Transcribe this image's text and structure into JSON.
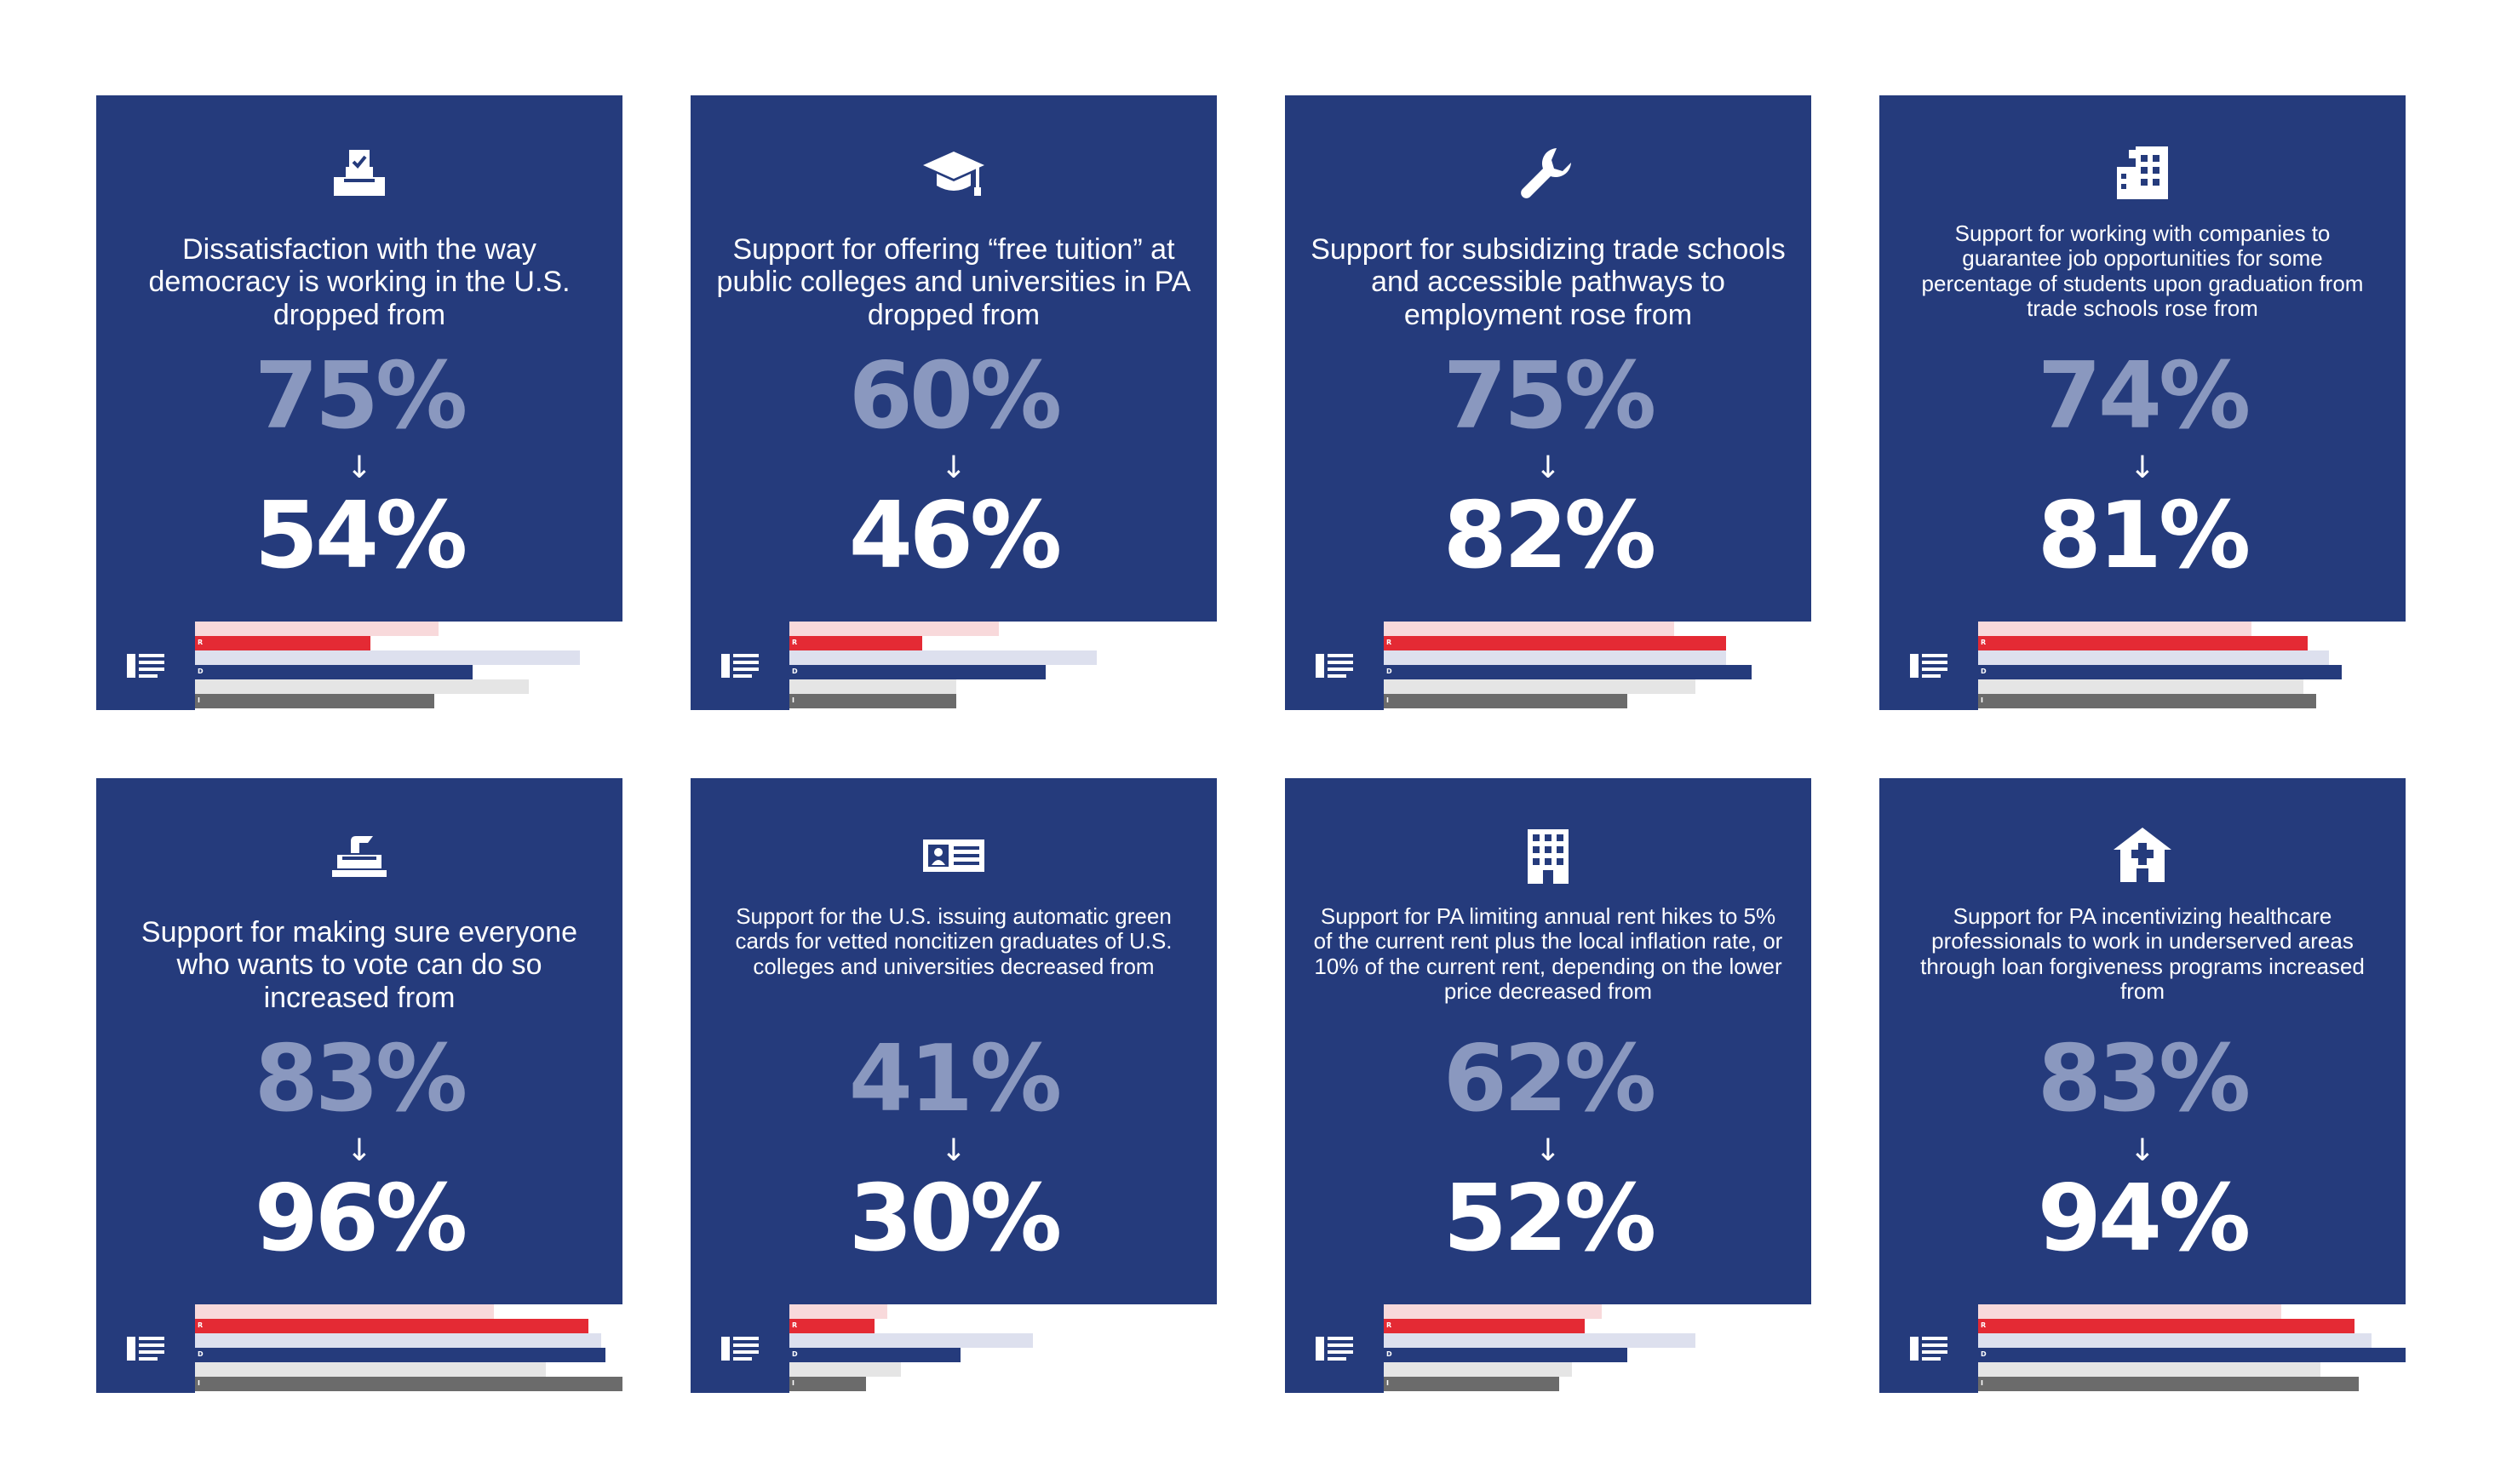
{
  "colors": {
    "panel": "#253b7c",
    "old_value": "#8a98bf",
    "new_value": "#ffffff",
    "r_bar": "#e42a34",
    "r_bar_light": "#f8d9db",
    "d_bar": "#253b7c",
    "d_bar_light": "#dde0ee",
    "i_bar": "#6b6b6b",
    "i_bar_light": "#e5e5e5"
  },
  "chart_data": [
    {
      "type": "bar",
      "icon": "ballot-box-icon",
      "title": "Dissatisfaction with the way democracy is working in the U.S. dropped from",
      "from": "75%",
      "arrow": "↓",
      "to": "54%",
      "categories": [
        "R",
        "D",
        "I"
      ],
      "series": [
        {
          "values": [
            57,
            90,
            78
          ]
        },
        {
          "values": [
            41,
            65,
            56
          ]
        }
      ],
      "xlim": [
        0,
        100
      ]
    },
    {
      "type": "bar",
      "icon": "graduation-cap-icon",
      "title": "Support for offering “free tuition” at public colleges and universities in PA dropped from",
      "from": "60%",
      "arrow": "↓",
      "to": "46%",
      "categories": [
        "R",
        "D",
        "I"
      ],
      "series": [
        {
          "values": [
            49,
            72,
            39
          ]
        },
        {
          "values": [
            31,
            60,
            39
          ]
        }
      ],
      "xlim": [
        0,
        100
      ]
    },
    {
      "type": "bar",
      "icon": "wrench-icon",
      "title": "Support for subsidizing trade schools and accessible pathways to employment rose from",
      "from": "75%",
      "arrow": "↓",
      "to": "82%",
      "categories": [
        "R",
        "D",
        "I"
      ],
      "series": [
        {
          "values": [
            68,
            80,
            73
          ]
        },
        {
          "values": [
            80,
            86,
            57
          ]
        }
      ],
      "xlim": [
        0,
        100
      ]
    },
    {
      "type": "bar",
      "icon": "office-buildings-icon",
      "title": "Support for working with companies to guarantee job opportunities for some percentage of students upon graduation from trade schools rose from",
      "from": "74%",
      "arrow": "↓",
      "to": "81%",
      "categories": [
        "R",
        "D",
        "I"
      ],
      "series": [
        {
          "values": [
            64,
            82,
            76
          ]
        },
        {
          "values": [
            77,
            85,
            79
          ]
        }
      ],
      "xlim": [
        0,
        100
      ]
    },
    {
      "type": "bar",
      "icon": "vote-ballot-icon",
      "title": "Support for making sure everyone who wants to vote can do so increased from",
      "from": "83%",
      "arrow": "↓",
      "to": "96%",
      "categories": [
        "R",
        "D",
        "I"
      ],
      "series": [
        {
          "values": [
            70,
            95,
            82
          ]
        },
        {
          "values": [
            92,
            96,
            100
          ]
        }
      ],
      "xlim": [
        0,
        100
      ]
    },
    {
      "type": "bar",
      "icon": "id-card-icon",
      "title": "Support for the U.S. issuing automatic green cards for vetted noncitizen graduates of U.S. colleges and universities decreased from",
      "from": "41%",
      "arrow": "↓",
      "to": "30%",
      "categories": [
        "R",
        "D",
        "I"
      ],
      "series": [
        {
          "values": [
            23,
            57,
            26
          ]
        },
        {
          "values": [
            20,
            40,
            18
          ]
        }
      ],
      "xlim": [
        0,
        100
      ]
    },
    {
      "type": "bar",
      "icon": "apartment-building-icon",
      "title": "Support for PA limiting annual rent hikes to 5% of the current rent plus the local inflation rate, or 10% of the current rent, depending on the lower price decreased from",
      "from": "62%",
      "arrow": "↓",
      "to": "52%",
      "categories": [
        "R",
        "D",
        "I"
      ],
      "series": [
        {
          "values": [
            51,
            73,
            44
          ]
        },
        {
          "values": [
            47,
            57,
            41
          ]
        }
      ],
      "xlim": [
        0,
        100
      ]
    },
    {
      "type": "bar",
      "icon": "hospital-icon",
      "title": "Support for PA incentivizing healthcare professionals to work in underserved areas through loan forgiveness programs increased from",
      "from": "83%",
      "arrow": "↓",
      "to": "94%",
      "categories": [
        "R",
        "D",
        "I"
      ],
      "series": [
        {
          "values": [
            71,
            92,
            80
          ]
        },
        {
          "values": [
            88,
            100,
            89
          ]
        }
      ],
      "xlim": [
        0,
        100
      ]
    }
  ]
}
